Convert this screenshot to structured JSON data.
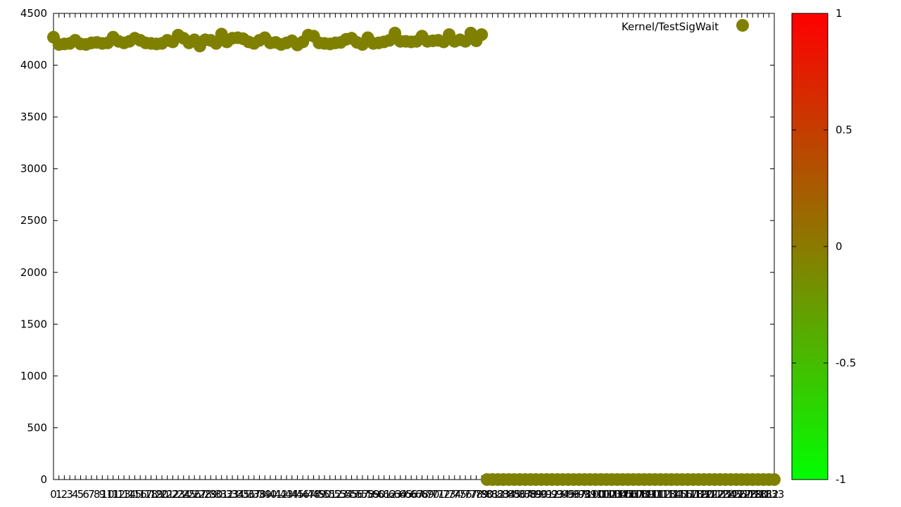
{
  "chart_data": {
    "type": "scatter",
    "title": "",
    "xlabel": "",
    "ylabel": "",
    "xlim": [
      0,
      133
    ],
    "ylim": [
      0,
      4500
    ],
    "y_ticks": [
      0,
      500,
      1000,
      1500,
      2000,
      2500,
      3000,
      3500,
      4000,
      4500
    ],
    "x_tick_labels": [
      "0",
      "1",
      "2",
      "3",
      "4",
      "5",
      "6",
      "7",
      "8",
      "9",
      "10",
      "11",
      "12",
      "13",
      "14",
      "15",
      "16",
      "17",
      "18",
      "19",
      "20",
      "21",
      "22",
      "23",
      "24",
      "25",
      "26",
      "27",
      "28",
      "29",
      "30",
      "31",
      "32",
      "33",
      "34",
      "35",
      "36",
      "37",
      "38",
      "39",
      "40",
      "41",
      "42",
      "43",
      "44",
      "45",
      "46",
      "47",
      "48",
      "49",
      "50",
      "51",
      "52",
      "53",
      "54",
      "55",
      "56",
      "57",
      "58",
      "59",
      "60",
      "61",
      "62",
      "63",
      "64",
      "65",
      "66",
      "67",
      "68",
      "69",
      "70",
      "71",
      "72",
      "73",
      "74",
      "75",
      "76",
      "77",
      "78",
      "79",
      "80",
      "81",
      "82",
      "83",
      "84",
      "85",
      "86",
      "87",
      "88",
      "89",
      "90",
      "91",
      "92",
      "93",
      "94",
      "95",
      "96",
      "97",
      "98",
      "99",
      "100",
      "101",
      "102",
      "103",
      "104",
      "105",
      "106",
      "107",
      "108",
      "109",
      "110",
      "111",
      "112",
      "113",
      "114",
      "115",
      "116",
      "117",
      "118",
      "119",
      "120",
      "121",
      "122",
      "123",
      "124",
      "125",
      "126",
      "127",
      "128",
      "129",
      "130",
      "131",
      "132",
      "133"
    ],
    "grid": false,
    "legend": {
      "position": "top-right",
      "entries": [
        "Kernel/TestSigWait"
      ]
    },
    "colorbar": {
      "ticks": [
        1,
        0.5,
        0,
        -0.5,
        -1
      ],
      "range": [
        -1,
        1
      ],
      "colors": {
        "max": "#ff0000",
        "mid": "#8b7a00",
        "min": "#00ff00"
      }
    },
    "marker_color": "#808000",
    "series": [
      {
        "name": "Kernel/TestSigWait",
        "x": [
          0,
          1,
          2,
          3,
          4,
          5,
          6,
          7,
          8,
          9,
          10,
          11,
          12,
          13,
          14,
          15,
          16,
          17,
          18,
          19,
          20,
          21,
          22,
          23,
          24,
          25,
          26,
          27,
          28,
          29,
          30,
          31,
          32,
          33,
          34,
          35,
          36,
          37,
          38,
          39,
          40,
          41,
          42,
          43,
          44,
          45,
          46,
          47,
          48,
          49,
          50,
          51,
          52,
          53,
          54,
          55,
          56,
          57,
          58,
          59,
          60,
          61,
          62,
          63,
          64,
          65,
          66,
          67,
          68,
          69,
          70,
          71,
          72,
          73,
          74,
          75,
          76,
          77,
          78,
          79,
          80,
          81,
          82,
          83,
          84,
          85,
          86,
          87,
          88,
          89,
          90,
          91,
          92,
          93,
          94,
          95,
          96,
          97,
          98,
          99,
          100,
          101,
          102,
          103,
          104,
          105,
          106,
          107,
          108,
          109,
          110,
          111,
          112,
          113,
          114,
          115,
          116,
          117,
          118,
          119,
          120,
          121,
          122,
          123,
          124,
          125,
          126,
          127,
          128,
          129,
          130,
          131,
          132,
          133
        ],
        "y": [
          4270,
          4200,
          4205,
          4210,
          4240,
          4205,
          4200,
          4215,
          4220,
          4210,
          4215,
          4270,
          4230,
          4215,
          4230,
          4260,
          4240,
          4215,
          4210,
          4205,
          4210,
          4240,
          4225,
          4290,
          4260,
          4215,
          4245,
          4185,
          4245,
          4240,
          4210,
          4300,
          4225,
          4260,
          4265,
          4255,
          4225,
          4210,
          4240,
          4265,
          4215,
          4220,
          4200,
          4215,
          4235,
          4195,
          4225,
          4290,
          4280,
          4215,
          4210,
          4205,
          4215,
          4220,
          4250,
          4260,
          4220,
          4200,
          4265,
          4210,
          4215,
          4225,
          4240,
          4310,
          4230,
          4230,
          4225,
          4230,
          4280,
          4230,
          4235,
          4240,
          4225,
          4295,
          4230,
          4245,
          4230,
          4310,
          4235,
          4295,
          0,
          0,
          0,
          0,
          0,
          0,
          0,
          0,
          0,
          0,
          0,
          0,
          0,
          0,
          0,
          0,
          0,
          0,
          0,
          0,
          0,
          0,
          0,
          0,
          0,
          0,
          0,
          0,
          0,
          0,
          0,
          0,
          0,
          0,
          0,
          0,
          0,
          0,
          0,
          0,
          0,
          0,
          0,
          0,
          0,
          0,
          0,
          0,
          0,
          0,
          0,
          0,
          0,
          0
        ]
      }
    ]
  }
}
